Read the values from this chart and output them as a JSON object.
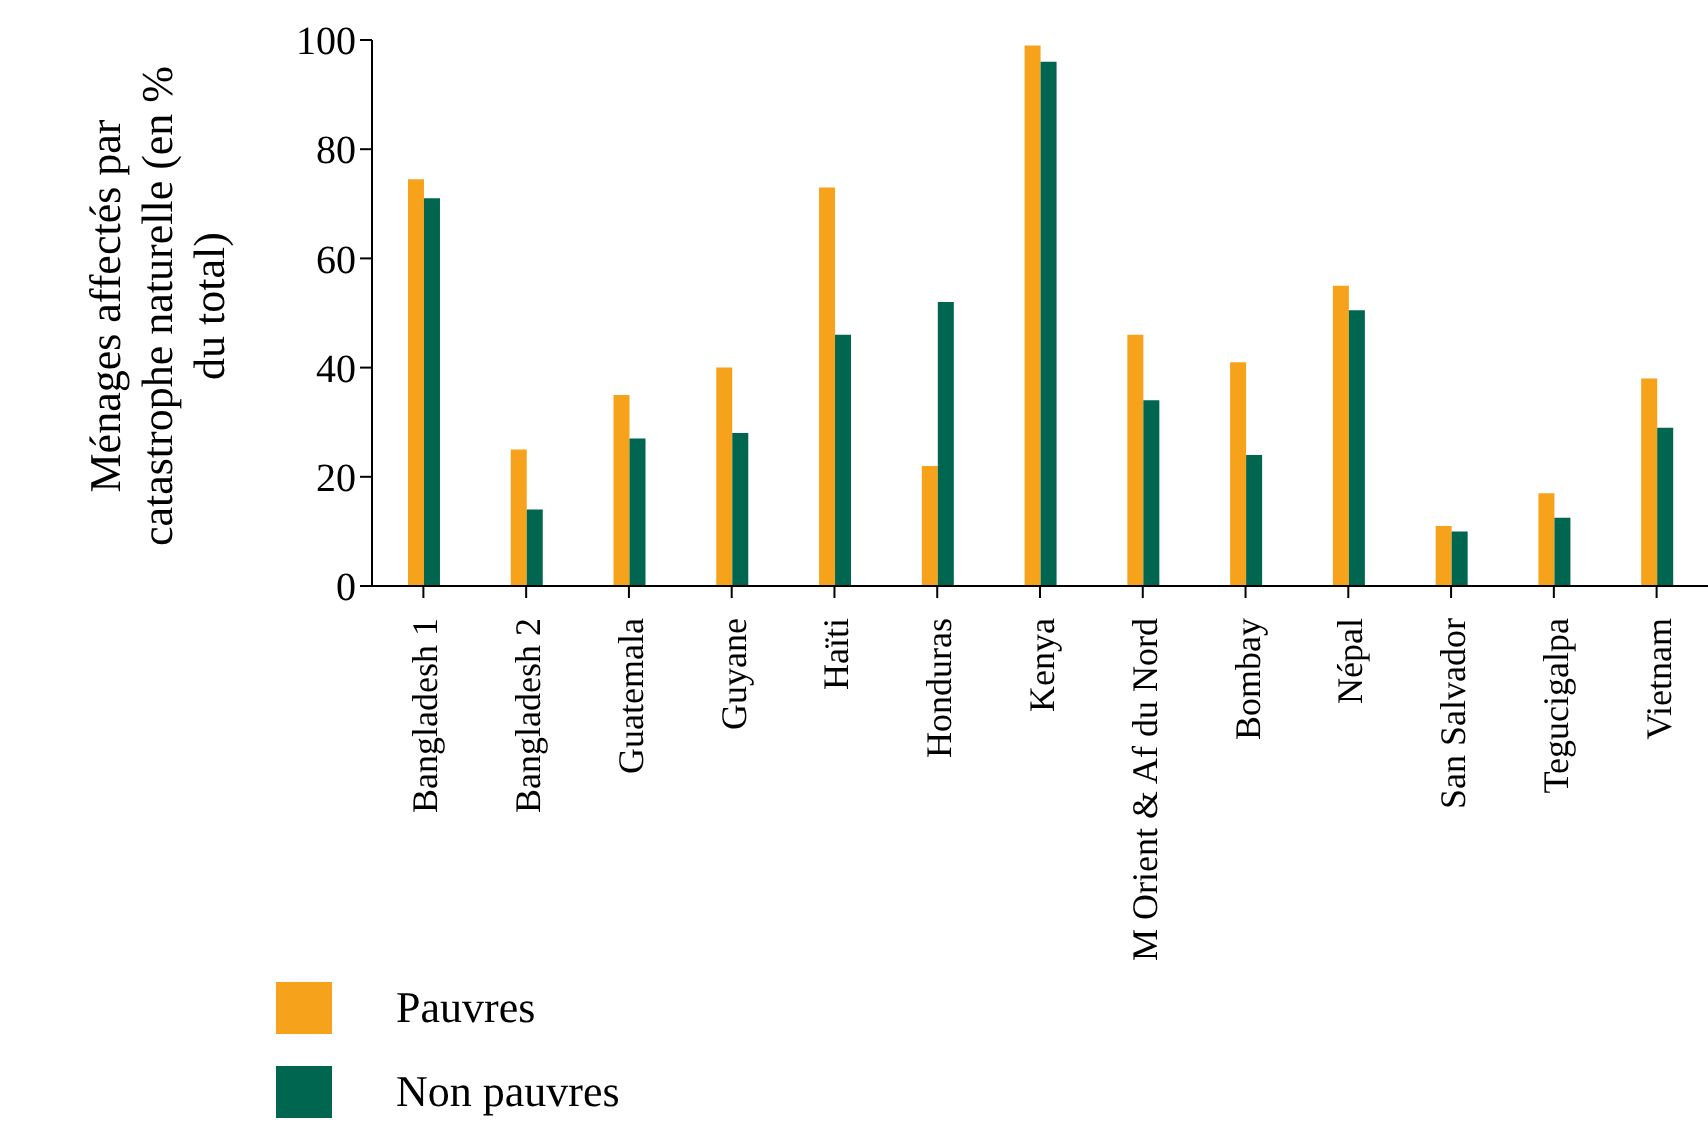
{
  "chart_data": {
    "type": "bar",
    "ylabel": "Ménages affectés par catastrophe naturelle (en % du total)",
    "categories": [
      "Bangladesh 1",
      "Bangladesh 2",
      "Guatemala",
      "Guyane",
      "Haïti",
      "Honduras",
      "Kenya",
      "M Orient & Af du Nord",
      "Bombay",
      "Népal",
      "San Salvador",
      "Tegucigalpa",
      "Vietnam"
    ],
    "series": [
      {
        "name": "Pauvres",
        "color": "#f7a21b",
        "values": [
          74.5,
          25,
          35,
          40,
          73,
          22,
          99,
          46,
          41,
          55,
          11,
          17,
          38
        ]
      },
      {
        "name": "Non pauvres",
        "color": "#006650",
        "values": [
          71,
          14,
          27,
          28,
          46,
          52,
          96,
          34,
          24,
          50.5,
          10,
          12.5,
          29
        ]
      }
    ],
    "ylim": [
      0,
      100
    ],
    "yticks": [
      0,
      20,
      40,
      60,
      80,
      100
    ],
    "grid": false,
    "legend": "bottom left"
  }
}
